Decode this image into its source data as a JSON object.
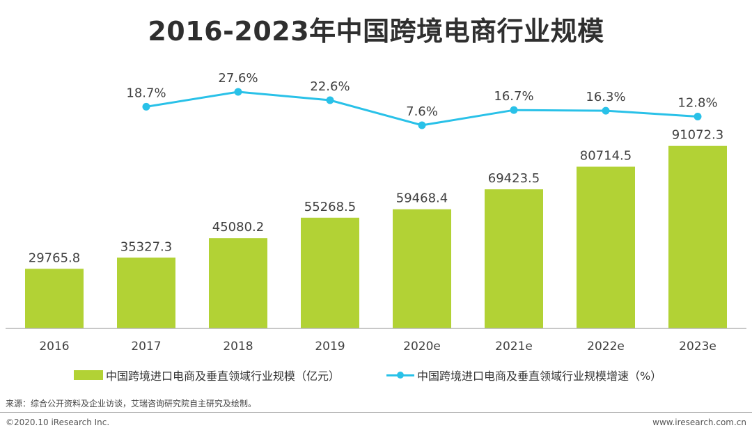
{
  "title": "2016-2023年中国跨境电商行业规模",
  "colors": {
    "bar": "#b2d235",
    "line": "#29c1e8",
    "axis": "#b5b5b5"
  },
  "chart_data": {
    "type": "bar",
    "title": "2016-2023年中国跨境电商行业规模",
    "categories": [
      "2016",
      "2017",
      "2018",
      "2019",
      "2020e",
      "2021e",
      "2022e",
      "2023e"
    ],
    "series": [
      {
        "name": "中国跨境进口电商及垂直领域行业规模（亿元）",
        "type": "bar",
        "values": [
          29765.8,
          35327.3,
          45080.2,
          55268.5,
          59468.4,
          69423.5,
          80714.5,
          91072.3
        ],
        "labels": [
          "29765.8",
          "35327.3",
          "45080.2",
          "55268.5",
          "59468.4",
          "69423.5",
          "80714.5",
          "91072.3"
        ]
      },
      {
        "name": "中国跨境进口电商及垂直领域行业规模增速（%）",
        "type": "line",
        "values": [
          null,
          18.7,
          27.6,
          22.6,
          7.6,
          16.7,
          16.3,
          12.8
        ],
        "labels": [
          "",
          "18.7%",
          "27.6%",
          "22.6%",
          "7.6%",
          "16.7%",
          "16.3%",
          "12.8%"
        ]
      }
    ],
    "xlabel": "",
    "ylabel": "",
    "ylim": [
      0,
      100000
    ],
    "y2lim": [
      -100,
      40
    ],
    "grid": false,
    "legend_position": "bottom"
  },
  "legend": {
    "bar_label": "中国跨境进口电商及垂直领域行业规模（亿元）",
    "line_label": "中国跨境进口电商及垂直领域行业规模增速（%）"
  },
  "footer": {
    "source": "来源：综合公开资料及企业访谈，艾瑞咨询研究院自主研究及绘制。",
    "copyright": "©2020.10 iResearch Inc.",
    "website": "www.iresearch.com.cn"
  }
}
